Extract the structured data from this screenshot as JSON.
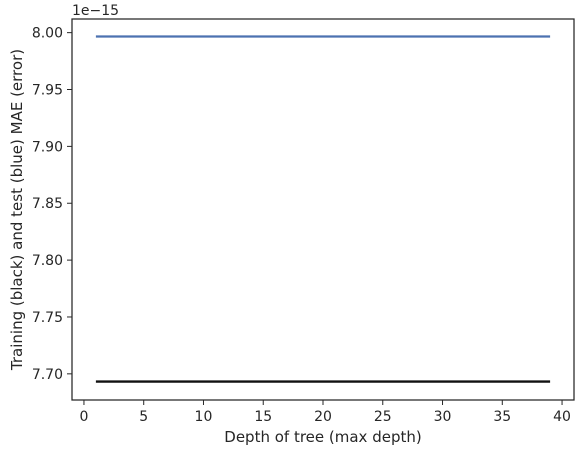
{
  "chart_data": {
    "type": "line",
    "title": "",
    "xlabel": "Depth of tree (max depth)",
    "ylabel": "Training (black) and test (blue) MAE (error)",
    "offset_text": "1e−15",
    "xlim": [
      -1,
      41
    ],
    "ylim": [
      7.677,
      8.012
    ],
    "x_ticks": [
      0,
      5,
      10,
      15,
      20,
      25,
      30,
      35,
      40
    ],
    "x_tick_labels": [
      "0",
      "5",
      "10",
      "15",
      "20",
      "25",
      "30",
      "35",
      "40"
    ],
    "y_ticks": [
      7.7,
      7.75,
      7.8,
      7.85,
      7.9,
      7.95,
      8.0
    ],
    "y_tick_labels": [
      "7.70",
      "7.75",
      "7.80",
      "7.85",
      "7.90",
      "7.95",
      "8.00"
    ],
    "grid": false,
    "legend": false,
    "series": [
      {
        "color": "#4c72b0",
        "x": [
          1,
          39
        ],
        "y": [
          7.9966,
          7.9966
        ]
      },
      {
        "color": "#111111",
        "x": [
          1,
          39
        ],
        "y": [
          7.6932,
          7.6932
        ]
      }
    ]
  }
}
